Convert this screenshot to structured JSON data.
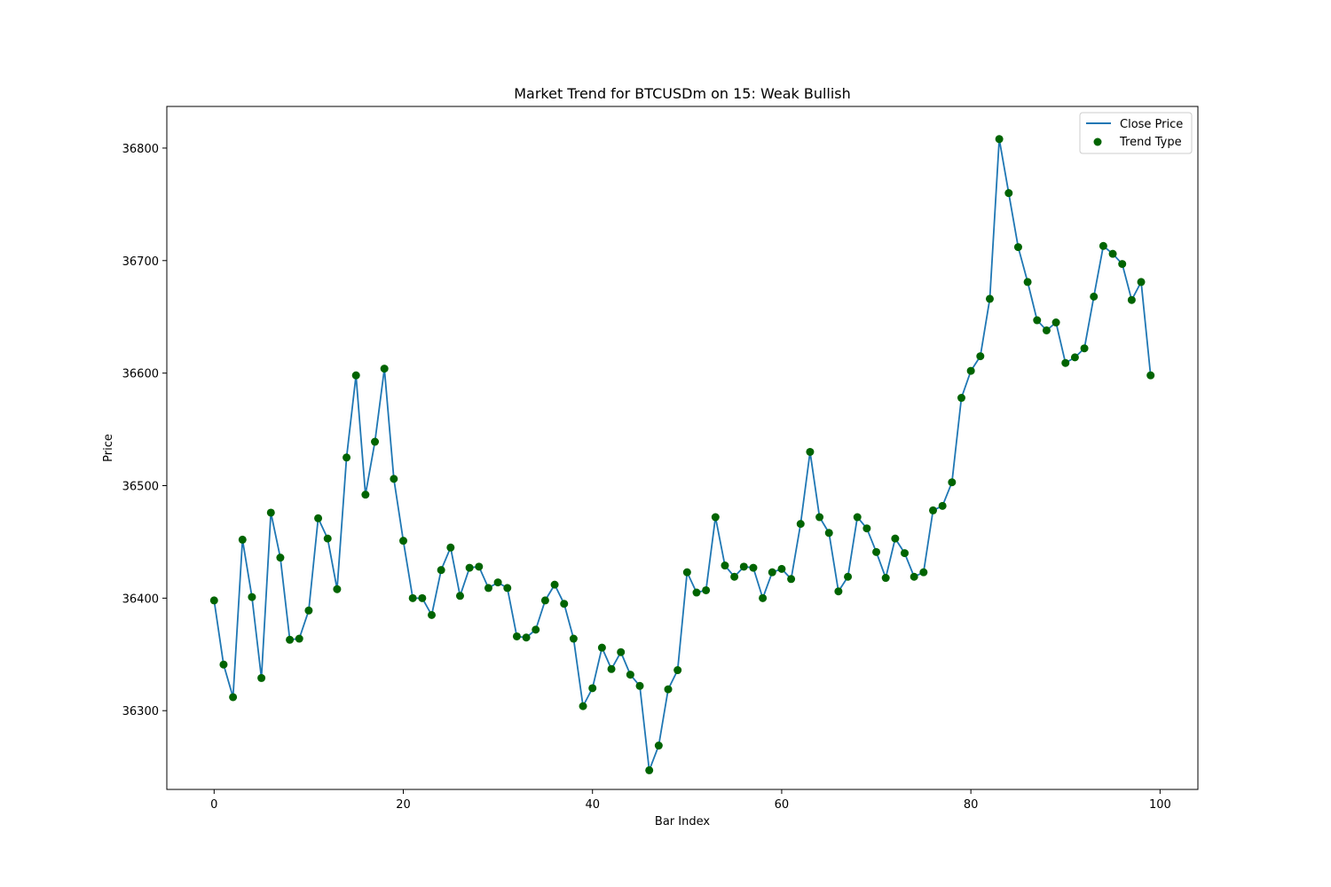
{
  "chart_data": {
    "type": "line",
    "title": "Market Trend for BTCUSDm on 15: Weak Bullish",
    "xlabel": "Bar Index",
    "ylabel": "Price",
    "xlim": [
      -5,
      104
    ],
    "ylim": [
      36230,
      36837
    ],
    "xticks": [
      0,
      20,
      40,
      60,
      80,
      100
    ],
    "yticks": [
      36300,
      36400,
      36500,
      36600,
      36700,
      36800
    ],
    "grid": false,
    "legend_position": "top-right",
    "legend": [
      "Close Price",
      "Trend Type"
    ],
    "line_color": "#1f77b4",
    "marker_color": "#006400",
    "series": [
      {
        "name": "Close Price",
        "kind": "line",
        "x": [
          0,
          1,
          2,
          3,
          4,
          5,
          6,
          7,
          8,
          9,
          10,
          11,
          12,
          13,
          14,
          15,
          16,
          17,
          18,
          19,
          20,
          21,
          22,
          23,
          24,
          25,
          26,
          27,
          28,
          29,
          30,
          31,
          32,
          33,
          34,
          35,
          36,
          37,
          38,
          39,
          40,
          41,
          42,
          43,
          44,
          45,
          46,
          47,
          48,
          49,
          50,
          51,
          52,
          53,
          54,
          55,
          56,
          57,
          58,
          59,
          60,
          61,
          62,
          63,
          64,
          65,
          66,
          67,
          68,
          69,
          70,
          71,
          72,
          73,
          74,
          75,
          76,
          77,
          78,
          79,
          80,
          81,
          82,
          83,
          84,
          85,
          86,
          87,
          88,
          89,
          90,
          91,
          92,
          93,
          94,
          95,
          96,
          97,
          98,
          99
        ],
        "y": [
          36398,
          36341,
          36312,
          36452,
          36401,
          36329,
          36476,
          36436,
          36363,
          36364,
          36389,
          36471,
          36453,
          36408,
          36525,
          36598,
          36492,
          36539,
          36604,
          36506,
          36451,
          36400,
          36400,
          36385,
          36425,
          36445,
          36402,
          36427,
          36428,
          36409,
          36414,
          36409,
          36366,
          36365,
          36372,
          36398,
          36412,
          36395,
          36364,
          36304,
          36320,
          36356,
          36337,
          36352,
          36332,
          36322,
          36247,
          36269,
          36319,
          36336,
          36423,
          36405,
          36407,
          36472,
          36429,
          36419,
          36428,
          36427,
          36400,
          36423,
          36426,
          36417,
          36466,
          36530,
          36472,
          36458,
          36406,
          36419,
          36472,
          36462,
          36441,
          36418,
          36453,
          36440,
          36419,
          36423,
          36478,
          36482,
          36503,
          36578,
          36602,
          36615,
          36666,
          36808,
          36760,
          36712,
          36681,
          36647,
          36638,
          36645,
          36609,
          36614,
          36622,
          36668,
          36713,
          36706,
          36697,
          36665,
          36681,
          36598
        ]
      },
      {
        "name": "Trend Type",
        "kind": "scatter",
        "x": [
          0,
          1,
          2,
          3,
          4,
          5,
          6,
          7,
          8,
          9,
          10,
          11,
          12,
          13,
          14,
          15,
          16,
          17,
          18,
          19,
          20,
          21,
          22,
          23,
          24,
          25,
          26,
          27,
          28,
          29,
          30,
          31,
          32,
          33,
          34,
          35,
          36,
          37,
          38,
          39,
          40,
          41,
          42,
          43,
          44,
          45,
          46,
          47,
          48,
          49,
          50,
          51,
          52,
          53,
          54,
          55,
          56,
          57,
          58,
          59,
          60,
          61,
          62,
          63,
          64,
          65,
          66,
          67,
          68,
          69,
          70,
          71,
          72,
          73,
          74,
          75,
          76,
          77,
          78,
          79,
          80,
          81,
          82,
          83,
          84,
          85,
          86,
          87,
          88,
          89,
          90,
          91,
          92,
          93,
          94,
          95,
          96,
          97,
          98,
          99
        ],
        "y": [
          36398,
          36341,
          36312,
          36452,
          36401,
          36329,
          36476,
          36436,
          36363,
          36364,
          36389,
          36471,
          36453,
          36408,
          36525,
          36598,
          36492,
          36539,
          36604,
          36506,
          36451,
          36400,
          36400,
          36385,
          36425,
          36445,
          36402,
          36427,
          36428,
          36409,
          36414,
          36409,
          36366,
          36365,
          36372,
          36398,
          36412,
          36395,
          36364,
          36304,
          36320,
          36356,
          36337,
          36352,
          36332,
          36322,
          36247,
          36269,
          36319,
          36336,
          36423,
          36405,
          36407,
          36472,
          36429,
          36419,
          36428,
          36427,
          36400,
          36423,
          36426,
          36417,
          36466,
          36530,
          36472,
          36458,
          36406,
          36419,
          36472,
          36462,
          36441,
          36418,
          36453,
          36440,
          36419,
          36423,
          36478,
          36482,
          36503,
          36578,
          36602,
          36615,
          36666,
          36808,
          36760,
          36712,
          36681,
          36647,
          36638,
          36645,
          36609,
          36614,
          36622,
          36668,
          36713,
          36706,
          36697,
          36665,
          36681,
          36598
        ]
      }
    ]
  }
}
